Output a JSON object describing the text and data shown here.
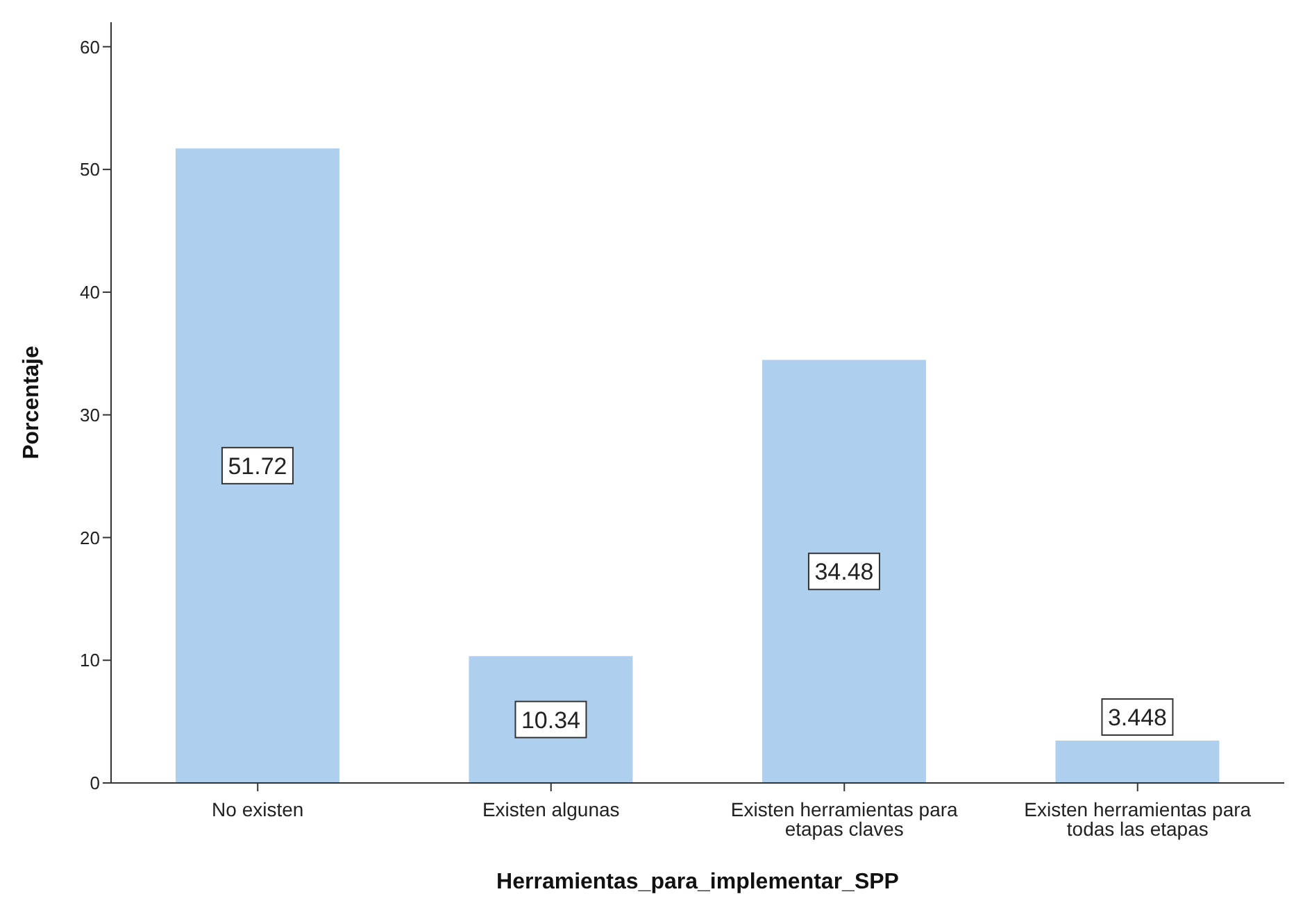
{
  "chart_data": {
    "type": "bar",
    "xlabel": "Herramientas_para_implementar_SPP",
    "ylabel": "Porcentaje",
    "categories": [
      "No existen",
      "Existen algunas",
      "Existen herramientas para etapas claves",
      "Existen herramientas para todas las etapas"
    ],
    "values": [
      51.72,
      10.34,
      34.48,
      3.448
    ],
    "color": "#aed0ee",
    "ylim": [
      0,
      62
    ],
    "yticks": [
      0,
      10,
      20,
      30,
      40,
      50,
      60
    ],
    "grid": false,
    "legend": false,
    "data_labels": true
  }
}
